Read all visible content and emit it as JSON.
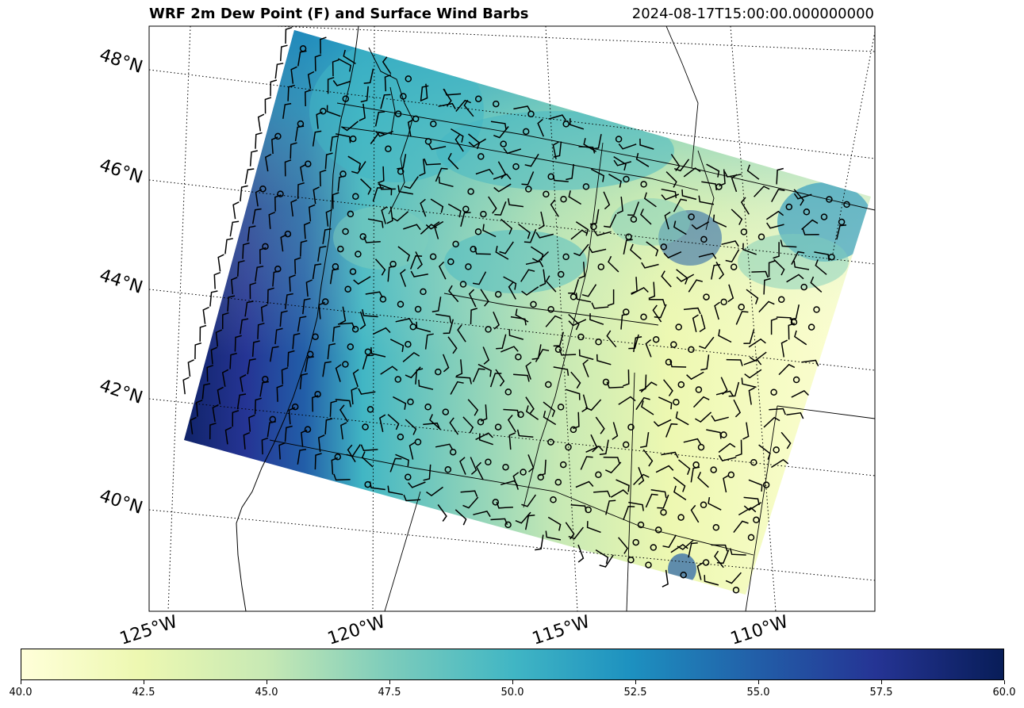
{
  "title": "WRF 2m Dew Point (F) and Surface Wind Barbs",
  "timestamp": "2024-08-17T15:00:00.000000000",
  "lat_labels": [
    "48°N",
    "46°N",
    "44°N",
    "42°N",
    "40°N"
  ],
  "lon_labels": [
    "125°W",
    "120°W",
    "115°W",
    "110°W"
  ],
  "colorbar": {
    "colormap": "YlGnBu",
    "min": 40.0,
    "max": 60.0,
    "ticks": [
      "40.0",
      "42.5",
      "45.0",
      "47.5",
      "50.0",
      "52.5",
      "55.0",
      "57.5",
      "60.0"
    ]
  },
  "field_colors": {
    "low": "#ffffd9",
    "mid_low": "#c7e9b4",
    "mid": "#41b6c4",
    "mid_high": "#225ea8",
    "high": "#081d58"
  }
}
